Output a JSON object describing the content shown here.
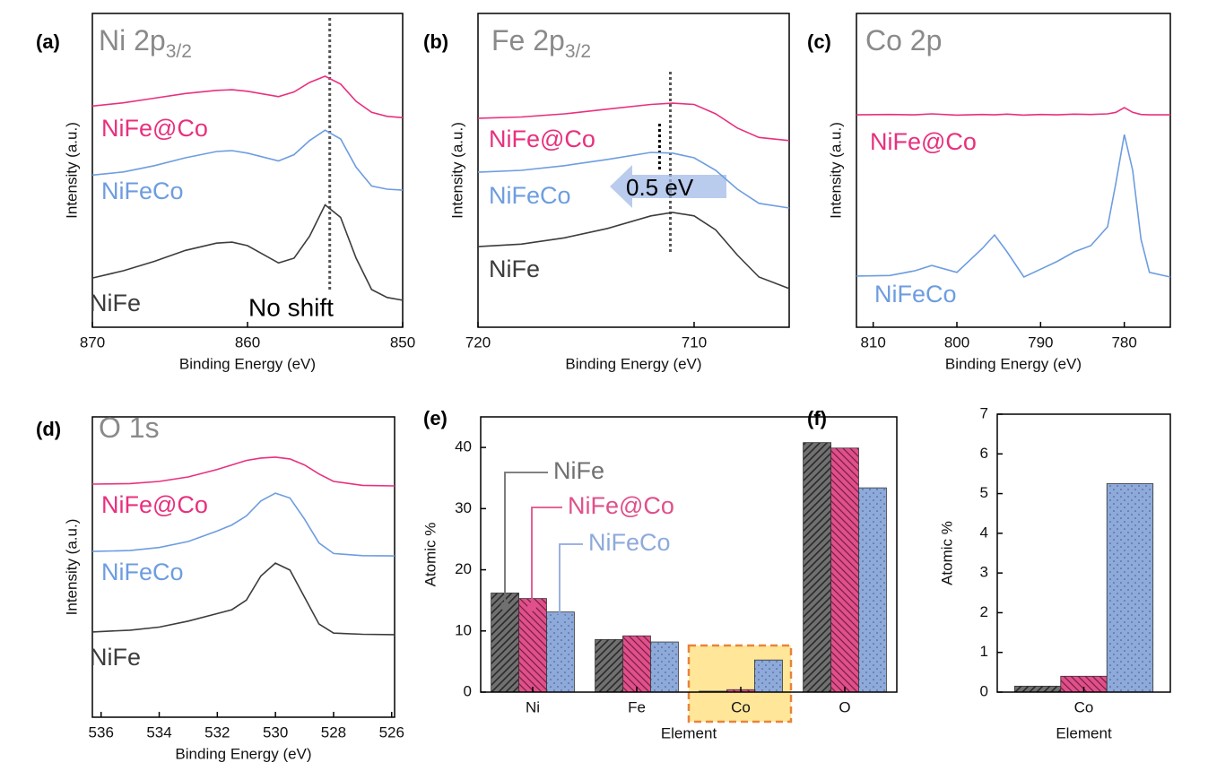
{
  "chart_data": [
    {
      "type": "line",
      "panel_label": "(a)",
      "title": "Ni 2p",
      "title_subscript": "3/2",
      "x_label": "Binding Energy (eV)",
      "y_label": "Intensity (a.u.)",
      "x": [
        870,
        868,
        866,
        864,
        862,
        861,
        860,
        858,
        857,
        856,
        855,
        854,
        853,
        852,
        851,
        850
      ],
      "xlim": [
        870,
        850
      ],
      "xticks": [
        870,
        860,
        850
      ],
      "ylim": [
        0,
        10
      ],
      "series": [
        {
          "name": "NiFe@Co",
          "color": "#e8307e",
          "values": [
            7.05,
            7.15,
            7.3,
            7.45,
            7.55,
            7.57,
            7.52,
            7.35,
            7.5,
            7.8,
            8.0,
            7.75,
            7.2,
            6.85,
            6.72,
            6.68
          ]
        },
        {
          "name": "NiFeCo",
          "color": "#6d9de0",
          "values": [
            4.85,
            4.95,
            5.15,
            5.4,
            5.6,
            5.63,
            5.55,
            5.3,
            5.5,
            5.95,
            6.28,
            6.0,
            5.1,
            4.5,
            4.4,
            4.37
          ]
        },
        {
          "name": "NiFe",
          "color": "#3c3c3c",
          "values": [
            1.57,
            1.8,
            2.1,
            2.45,
            2.68,
            2.71,
            2.6,
            2.05,
            2.2,
            2.9,
            3.9,
            3.5,
            2.2,
            1.2,
            0.95,
            0.86
          ]
        }
      ],
      "marker_lines": [
        {
          "x": 854.7,
          "color": "#555555"
        }
      ],
      "annotations": [
        "No shift"
      ]
    },
    {
      "type": "line",
      "panel_label": "(b)",
      "title": "Fe 2p",
      "title_subscript": "3/2",
      "x_label": "Binding Energy (eV)",
      "y_label": "Intensity (a.u.)",
      "x": [
        720,
        718,
        716,
        714,
        712,
        711,
        710,
        709,
        708,
        707,
        705.6
      ],
      "xlim": [
        720,
        705.6
      ],
      "xticks": [
        720,
        710
      ],
      "ylim": [
        0,
        10
      ],
      "series": [
        {
          "name": "NiFe@Co",
          "color": "#e8307e",
          "values": [
            6.66,
            6.7,
            6.8,
            6.95,
            7.1,
            7.14,
            7.1,
            6.8,
            6.35,
            6.05,
            5.95
          ]
        },
        {
          "name": "NiFeCo",
          "color": "#6d9de0",
          "values": [
            4.94,
            5.0,
            5.15,
            5.35,
            5.57,
            5.55,
            5.4,
            5.0,
            4.4,
            3.95,
            3.8
          ]
        },
        {
          "name": "NiFe",
          "color": "#3c3c3c",
          "values": [
            2.57,
            2.65,
            2.85,
            3.15,
            3.55,
            3.66,
            3.55,
            3.1,
            2.3,
            1.6,
            1.23
          ]
        }
      ],
      "marker_lines": [
        {
          "x": 711.1,
          "color": "#555555"
        },
        {
          "x": 711.6,
          "color": "#000000"
        }
      ],
      "annotations": [
        "0.5 eV"
      ]
    },
    {
      "type": "line",
      "panel_label": "(c)",
      "title": "Co 2p",
      "x_label": "Binding Energy (eV)",
      "y_label": "Intensity (a.u.)",
      "x": [
        812,
        808,
        805,
        803,
        800,
        797,
        795.5,
        794,
        792,
        790,
        788,
        786,
        784,
        782,
        781,
        780,
        779,
        778,
        777,
        774.5
      ],
      "xlim": [
        812,
        774.5
      ],
      "xticks": [
        810,
        800,
        790,
        780
      ],
      "ylim": [
        0,
        10
      ],
      "series": [
        {
          "name": "NiFe@Co",
          "color": "#e8307e",
          "values": [
            6.77,
            6.78,
            6.77,
            6.8,
            6.76,
            6.78,
            6.77,
            6.79,
            6.76,
            6.78,
            6.77,
            6.79,
            6.78,
            6.8,
            6.85,
            7.0,
            6.85,
            6.78,
            6.77,
            6.77
          ]
        },
        {
          "name": "NiFeCo",
          "color": "#6d9de0",
          "values": [
            1.63,
            1.65,
            1.8,
            1.97,
            1.75,
            2.5,
            2.94,
            2.4,
            1.6,
            1.85,
            2.1,
            2.4,
            2.6,
            3.2,
            4.6,
            6.14,
            5.0,
            2.8,
            1.75,
            1.6
          ]
        }
      ]
    },
    {
      "type": "line",
      "panel_label": "(d)",
      "title": "O 1s",
      "x_label": "Binding Energy (eV)",
      "y_label": "Intensity (a.u.)",
      "x": [
        536.3,
        535,
        534,
        533,
        532,
        531.5,
        531,
        530.5,
        530,
        529.5,
        529,
        528.5,
        528,
        527,
        525.9
      ],
      "xlim": [
        536.3,
        525.9
      ],
      "xticks": [
        536,
        534,
        532,
        530,
        528,
        526
      ],
      "ylim": [
        0,
        10
      ],
      "series": [
        {
          "name": "NiFe@Co",
          "color": "#e8307e",
          "values": [
            7.76,
            7.78,
            7.85,
            8.0,
            8.25,
            8.4,
            8.55,
            8.63,
            8.66,
            8.6,
            8.4,
            8.1,
            7.85,
            7.72,
            7.7
          ]
        },
        {
          "name": "NiFeCo",
          "color": "#6d9de0",
          "values": [
            5.52,
            5.55,
            5.65,
            5.85,
            6.2,
            6.4,
            6.7,
            7.2,
            7.46,
            7.3,
            6.6,
            5.8,
            5.45,
            5.38,
            5.37
          ]
        },
        {
          "name": "NiFe",
          "color": "#3c3c3c",
          "values": [
            2.84,
            2.9,
            3.0,
            3.2,
            3.45,
            3.58,
            3.9,
            4.7,
            5.13,
            4.9,
            4.0,
            3.1,
            2.8,
            2.76,
            2.75
          ]
        }
      ]
    },
    {
      "type": "bar",
      "panel_label": "(e)",
      "x_label": "Element",
      "y_label": "Atomic %",
      "categories": [
        "Ni",
        "Fe",
        "Co",
        "O"
      ],
      "ylim": [
        0,
        45
      ],
      "yticks": [
        0,
        10,
        20,
        30,
        40
      ],
      "highlight_index": 2,
      "series": [
        {
          "name": "NiFe",
          "color": "#707070",
          "pattern": "hatch-forward",
          "values": [
            16.2,
            8.6,
            0.15,
            40.8
          ]
        },
        {
          "name": "NiFe@Co",
          "color": "#e0508a",
          "pattern": "hatch-back",
          "values": [
            15.3,
            9.2,
            0.4,
            39.9
          ]
        },
        {
          "name": "NiFeCo",
          "color": "#8eaadb",
          "pattern": "dots",
          "values": [
            13.1,
            8.2,
            5.25,
            33.4
          ]
        }
      ]
    },
    {
      "type": "bar",
      "panel_label": "(f)",
      "x_label": "Element",
      "y_label": "Atomic %",
      "categories": [
        "Co"
      ],
      "ylim": [
        0,
        7
      ],
      "yticks": [
        0,
        1,
        2,
        3,
        4,
        5,
        6,
        7
      ],
      "series": [
        {
          "color": "#707070",
          "pattern": "hatch-forward",
          "values": [
            0.15
          ]
        },
        {
          "color": "#e0508a",
          "pattern": "hatch-back",
          "values": [
            0.4
          ]
        },
        {
          "color": "#8eaadb",
          "pattern": "dots",
          "values": [
            5.25
          ]
        }
      ]
    }
  ]
}
